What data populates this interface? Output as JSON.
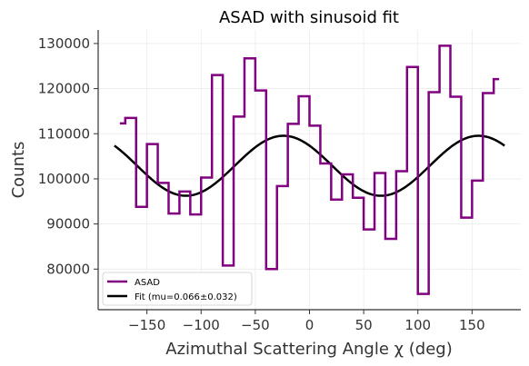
{
  "chart_data": {
    "type": "line",
    "title": "ASAD with sinusoid fit",
    "xlabel": "Azimuthal Scattering Angle χ (deg)",
    "ylabel": "Counts",
    "xlim": [
      -195,
      195
    ],
    "ylim": [
      71000,
      133000
    ],
    "xticks": [
      -150,
      -100,
      -50,
      0,
      50,
      100,
      150
    ],
    "yticks": [
      80000,
      90000,
      100000,
      110000,
      120000,
      130000
    ],
    "xtick_labels": [
      "−150",
      "−100",
      "−50",
      "0",
      "50",
      "100",
      "150"
    ],
    "ytick_labels": [
      "80000",
      "90000",
      "100000",
      "110000",
      "120000",
      "130000"
    ],
    "grid": true,
    "legend_position": "lower-left",
    "series": [
      {
        "name": "ASAD",
        "style": "steps",
        "color": "#800080",
        "x": [
          -175,
          -165,
          -155,
          -145,
          -135,
          -125,
          -115,
          -105,
          -95,
          -85,
          -75,
          -65,
          -55,
          -45,
          -35,
          -25,
          -15,
          -5,
          5,
          15,
          25,
          35,
          45,
          55,
          65,
          75,
          85,
          95,
          105,
          115,
          125,
          135,
          145,
          155,
          165,
          175
        ],
        "y": [
          112300,
          113500,
          93800,
          107700,
          99100,
          92300,
          97200,
          92100,
          100300,
          123000,
          80800,
          113800,
          126700,
          119600,
          80000,
          98400,
          112200,
          118300,
          111800,
          103400,
          95400,
          101000,
          95800,
          88800,
          101300,
          86700,
          101700,
          124800,
          74500,
          119200,
          129500,
          118200,
          91400,
          99600,
          119000,
          122100
        ]
      },
      {
        "name": "Fit (mu=0.066±0.032)",
        "style": "line",
        "color": "#000000",
        "function": "mean + amp*cos(2*(x - phase))",
        "mean": 102900,
        "amp": 6650,
        "phase_deg": -24,
        "x_range": [
          -180,
          180
        ]
      }
    ]
  }
}
